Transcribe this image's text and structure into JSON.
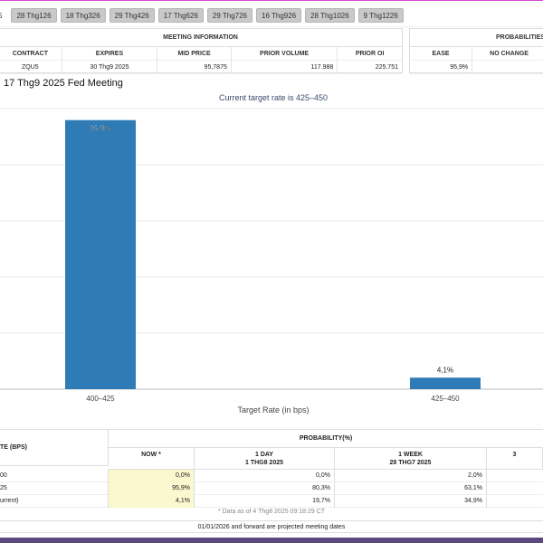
{
  "tabs": [
    "5",
    "28 Thg126",
    "18 Thg326",
    "29 Thg426",
    "17 Thg626",
    "29 Thg726",
    "16 Thg926",
    "28 Thg1026",
    "9 Thg1226"
  ],
  "meeting_info": {
    "title": "MEETING INFORMATION",
    "headers": [
      "CONTRACT",
      "EXPIRES",
      "MID PRICE",
      "PRIOR VOLUME",
      "PRIOR OI"
    ],
    "row": [
      "ZQU5",
      "30 Thg9 2025",
      "95,7875",
      "117.988",
      "225.751"
    ]
  },
  "probabilities_box": {
    "title": "PROBABILITIES",
    "headers": [
      "EASE",
      "NO CHANGE"
    ],
    "row": [
      "95,9%",
      ""
    ]
  },
  "meeting_title": "17 Thg9 2025 Fed Meeting",
  "chart_data": {
    "type": "bar",
    "title": "Current target rate is 425–450",
    "xlabel": "Target Rate (in bps)",
    "ylabel": "",
    "categories": [
      "400–425",
      "425–450"
    ],
    "values": [
      95.9,
      4.1
    ],
    "data_labels": [
      "95,9%",
      "4,1%"
    ],
    "ylim": [
      0,
      100
    ],
    "bar_color": "#2e7bb6"
  },
  "bottom_table": {
    "left_header": "TE (BPS)",
    "prob_header": "PROBABILITY(%)",
    "col_headers": [
      {
        "line1": "NOW *",
        "line2": ""
      },
      {
        "line1": "1 DAY",
        "line2": "1 THG8 2025"
      },
      {
        "line1": "1 WEEK",
        "line2": "28 THG7 2025"
      },
      {
        "line1": "3",
        "line2": ""
      }
    ],
    "rows": [
      {
        "label": "00",
        "values": [
          "0,0%",
          "0,0%",
          "2,0%"
        ]
      },
      {
        "label": "25",
        "values": [
          "95,9%",
          "80,3%",
          "63,1%"
        ]
      },
      {
        "label": "urrent)",
        "values": [
          "4,1%",
          "19,7%",
          "34,9%"
        ]
      }
    ],
    "note": "* Data as of 4 Thg8 2025 09:18:29 CT",
    "projected": "01/01/2026 and forward are projected meeting dates"
  }
}
